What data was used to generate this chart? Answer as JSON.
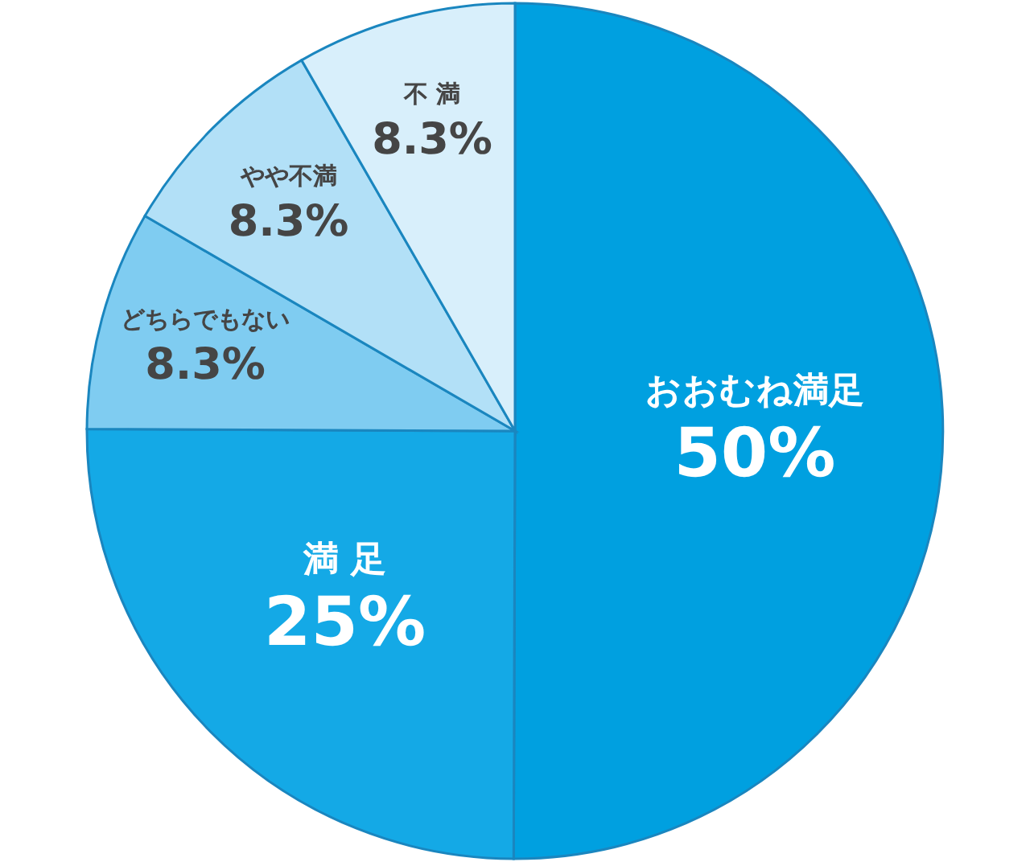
{
  "chart_data": {
    "type": "pie",
    "categories": [
      "おおむね満足",
      "満 足",
      "どちらでもない",
      "やや不満",
      "不 満"
    ],
    "values": [
      50,
      25,
      8.3,
      8.3,
      8.3
    ],
    "colors": [
      "#00a0e0",
      "#14a9e6",
      "#7fccf1",
      "#b2e0f7",
      "#d8effb"
    ],
    "value_labels": [
      "50%",
      "25%",
      "8.3%",
      "8.3%",
      "8.3%"
    ]
  }
}
